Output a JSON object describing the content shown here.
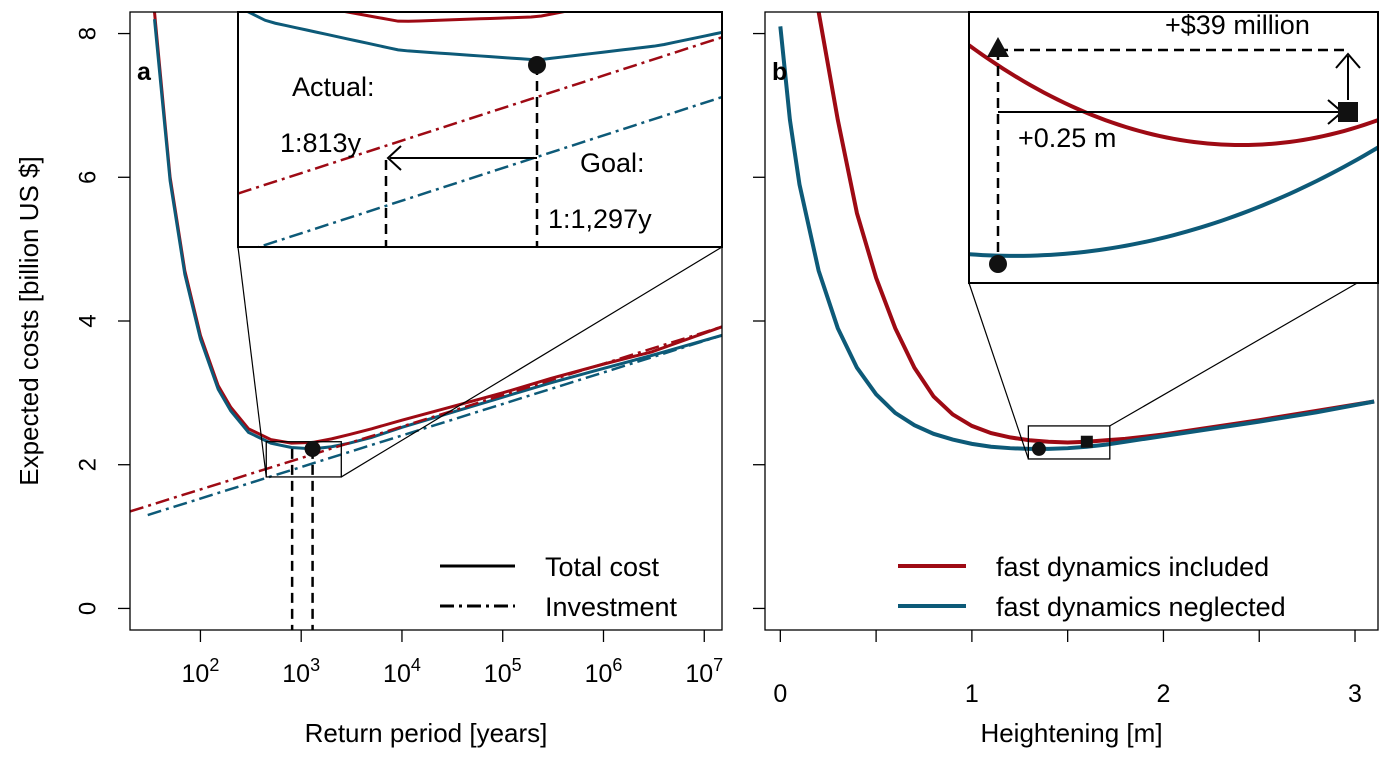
{
  "colors": {
    "included": "#9e0a14",
    "neglected": "#0d5a78"
  },
  "chart_data": [
    {
      "panel": "a",
      "type": "line",
      "xlabel": "Return period [years]",
      "ylabel": "Expected costs [billion US $]",
      "x_scale": "log",
      "xlim": [
        20,
        15000000
      ],
      "ylim": [
        -0.3,
        8.3
      ],
      "x_ticks": [
        100,
        1000,
        10000,
        100000,
        1000000,
        10000000
      ],
      "x_tick_base": "10",
      "x_tick_exponents": [
        "2",
        "3",
        "4",
        "5",
        "6",
        "7"
      ],
      "y_ticks": [
        0,
        2,
        4,
        6,
        8
      ],
      "legend": {
        "position": "bottom-right",
        "entries": [
          {
            "label": "Total cost",
            "line": "solid"
          },
          {
            "label": "Investment",
            "line": "dash-dot"
          }
        ]
      },
      "series": [
        {
          "name": "Total cost",
          "dynamics": "included",
          "line": "solid",
          "x": [
            35,
            50,
            70,
            100,
            150,
            200,
            300,
            500,
            800,
            1300,
            2000,
            3000,
            5000,
            10000,
            30000,
            100000,
            300000,
            1000000,
            3000000,
            15000000
          ],
          "y": [
            8.3,
            6.0,
            4.7,
            3.8,
            3.1,
            2.8,
            2.5,
            2.35,
            2.3,
            2.31,
            2.36,
            2.42,
            2.5,
            2.62,
            2.8,
            3.0,
            3.2,
            3.4,
            3.57,
            3.92
          ]
        },
        {
          "name": "Total cost",
          "dynamics": "neglected",
          "line": "solid",
          "x": [
            35,
            50,
            70,
            100,
            150,
            200,
            300,
            500,
            800,
            1300,
            2000,
            3000,
            5000,
            10000,
            30000,
            100000,
            300000,
            1000000,
            3000000,
            15000000
          ],
          "y": [
            8.2,
            5.95,
            4.65,
            3.75,
            3.05,
            2.75,
            2.45,
            2.3,
            2.24,
            2.22,
            2.25,
            2.3,
            2.38,
            2.52,
            2.72,
            2.94,
            3.14,
            3.34,
            3.52,
            3.8
          ]
        },
        {
          "name": "Investment",
          "dynamics": "included",
          "line": "dash-dot",
          "x": [
            20,
            15000000
          ],
          "y": [
            1.35,
            3.92
          ]
        },
        {
          "name": "Investment",
          "dynamics": "neglected",
          "line": "dash-dot",
          "x": [
            30,
            15000000
          ],
          "y": [
            1.3,
            3.8
          ]
        }
      ],
      "optimum_point": {
        "x": 1297,
        "y": 2.22
      },
      "drop_lines_x": [
        813,
        1297
      ],
      "zoom_box": {
        "x": [
          450,
          2500
        ],
        "y": [
          1.83,
          2.32
        ]
      },
      "inset": {
        "annotations": [
          {
            "text": "Actual:"
          },
          {
            "text": "1:813y"
          },
          {
            "text": "Goal:"
          },
          {
            "text": "1:1,297y"
          }
        ]
      }
    },
    {
      "panel": "b",
      "type": "line",
      "xlabel": "Heightening [m]",
      "xlim": [
        -0.08,
        3.12
      ],
      "ylim": [
        -0.3,
        8.3
      ],
      "x_ticks": [
        0,
        1,
        2,
        3
      ],
      "x_tick_labels": [
        "0",
        "1",
        "2",
        "3"
      ],
      "x_minor_ticks": [
        0.5,
        1.5,
        2.5
      ],
      "legend": {
        "position": "bottom-right",
        "entries": [
          {
            "label": "fast dynamics included",
            "color": "#9e0a14"
          },
          {
            "label": "fast dynamics neglected",
            "color": "#0d5a78"
          }
        ]
      },
      "series": [
        {
          "name": "fast dynamics included",
          "x": [
            0.2,
            0.3,
            0.4,
            0.5,
            0.6,
            0.7,
            0.8,
            0.9,
            1.0,
            1.1,
            1.2,
            1.3,
            1.4,
            1.5,
            1.6,
            1.7,
            1.8,
            2.0,
            2.2,
            2.5,
            2.8,
            3.1
          ],
          "y": [
            8.3,
            6.8,
            5.5,
            4.6,
            3.9,
            3.35,
            2.95,
            2.7,
            2.54,
            2.44,
            2.38,
            2.34,
            2.32,
            2.31,
            2.32,
            2.34,
            2.36,
            2.42,
            2.5,
            2.62,
            2.75,
            2.88
          ]
        },
        {
          "name": "fast dynamics neglected",
          "x": [
            0.0,
            0.05,
            0.1,
            0.2,
            0.3,
            0.4,
            0.5,
            0.6,
            0.7,
            0.8,
            0.9,
            1.0,
            1.1,
            1.2,
            1.3,
            1.35,
            1.4,
            1.5,
            1.6,
            1.7,
            1.8,
            2.0,
            2.2,
            2.5,
            2.8,
            3.1
          ],
          "y": [
            8.1,
            6.8,
            5.9,
            4.7,
            3.9,
            3.35,
            2.98,
            2.72,
            2.55,
            2.43,
            2.35,
            2.29,
            2.25,
            2.23,
            2.22,
            2.22,
            2.22,
            2.23,
            2.25,
            2.28,
            2.32,
            2.4,
            2.48,
            2.6,
            2.73,
            2.88
          ]
        }
      ],
      "points": [
        {
          "x": 1.35,
          "y": 2.22,
          "shape": "circle"
        },
        {
          "x": 1.6,
          "y": 2.32,
          "shape": "square"
        }
      ],
      "zoom_box": {
        "x": [
          1.3,
          1.6
        ],
        "y": [
          2.08,
          2.54
        ]
      },
      "inset": {
        "annotations": [
          {
            "text": "+$39 million"
          },
          {
            "text": "+0.25 m"
          }
        ]
      }
    }
  ]
}
